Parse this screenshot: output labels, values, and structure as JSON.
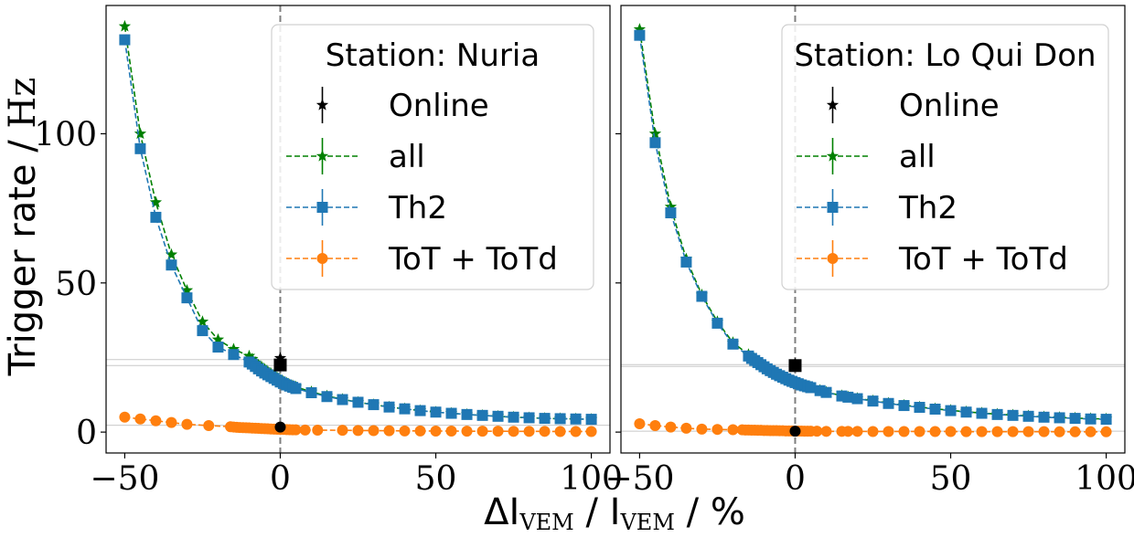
{
  "chart_data": [
    {
      "type": "line",
      "legend_title": "Station: Nuria",
      "legend_position": "top-right",
      "xlim": [
        -56,
        106
      ],
      "ylim": [
        -7,
        143
      ],
      "xticks": [
        -50,
        0,
        50,
        100
      ],
      "yticks": [
        0,
        50,
        100
      ],
      "vline_x": 0,
      "hlines": [
        22.3,
        24.3,
        2.3
      ],
      "online": {
        "name": "Online",
        "x": 0,
        "all": 24.8,
        "th2": 22.5,
        "tot": 1.7
      },
      "series": [
        {
          "name": "all",
          "color": "#008000",
          "marker": "star",
          "x": [
            -50,
            -45,
            -40,
            -35,
            -30,
            -25,
            -20,
            -15,
            -10,
            -9,
            -8,
            -7,
            -6,
            -5,
            -4,
            -3,
            -2,
            -1,
            0,
            1,
            2,
            3,
            4,
            5,
            10,
            15,
            20,
            25,
            30,
            35,
            40,
            45,
            50,
            55,
            60,
            65,
            70,
            75,
            80,
            85,
            90,
            95,
            100
          ],
          "y": [
            136,
            100,
            77,
            59.5,
            47.5,
            37,
            31,
            27.8,
            25.5,
            24.5,
            23.3,
            22.5,
            21.8,
            21,
            20.3,
            19.6,
            19,
            18.2,
            17.5,
            16.9,
            16.4,
            15.9,
            15.5,
            15.1,
            13.5,
            12.1,
            11,
            10,
            9.2,
            8.4,
            7.8,
            7.2,
            6.7,
            6.3,
            5.9,
            5.6,
            5.3,
            5,
            4.8,
            4.6,
            4.5,
            4.4,
            4.3
          ]
        },
        {
          "name": "Th2",
          "color": "#1f77b4",
          "marker": "square",
          "x": [
            -50,
            -45,
            -40,
            -35,
            -30,
            -25,
            -20,
            -15,
            -10,
            -9,
            -8,
            -7,
            -6,
            -5,
            -4,
            -3,
            -2,
            -1,
            0,
            1,
            2,
            3,
            4,
            5,
            10,
            15,
            20,
            25,
            30,
            35,
            40,
            45,
            50,
            55,
            60,
            65,
            70,
            75,
            80,
            85,
            90,
            95,
            100
          ],
          "y": [
            131.5,
            95,
            72,
            56,
            45,
            34,
            28.5,
            26,
            23.5,
            22.8,
            22,
            21.2,
            20.5,
            19.8,
            19.2,
            18.6,
            18,
            17.4,
            16.8,
            16.3,
            15.8,
            15.4,
            15,
            14.6,
            13.2,
            11.9,
            10.9,
            10,
            9.2,
            8.4,
            7.8,
            7.2,
            6.7,
            6.3,
            5.9,
            5.6,
            5.3,
            5,
            4.8,
            4.6,
            4.5,
            4.4,
            4.3
          ]
        },
        {
          "name": "ToT + ToTd",
          "color": "#ff7f0e",
          "marker": "circle",
          "x": [
            -50,
            -45,
            -40,
            -35,
            -30,
            -23,
            -16,
            -15,
            -14,
            -13,
            -12,
            -11,
            -10,
            -9,
            -8,
            -7,
            -6,
            -5,
            -4,
            -3,
            -2,
            -1,
            0,
            1,
            2,
            3,
            4,
            5,
            8,
            12,
            20,
            25,
            30,
            35,
            40,
            45,
            50,
            55,
            60,
            65,
            70,
            75,
            80,
            85,
            90,
            95,
            100
          ],
          "y": [
            5.0,
            4.4,
            3.8,
            3.2,
            2.6,
            2.2,
            1.8,
            1.7,
            1.6,
            1.55,
            1.5,
            1.45,
            1.4,
            1.35,
            1.3,
            1.25,
            1.2,
            1.15,
            1.1,
            1.05,
            1.0,
            0.95,
            0.9,
            0.9,
            0.85,
            0.8,
            0.75,
            0.75,
            0.7,
            0.65,
            0.6,
            0.55,
            0.5,
            0.45,
            0.4,
            0.4,
            0.35,
            0.35,
            0.3,
            0.3,
            0.3,
            0.25,
            0.25,
            0.25,
            0.2,
            0.2,
            0.2
          ]
        }
      ]
    },
    {
      "type": "line",
      "legend_title": "Station: Lo Qui Don",
      "legend_position": "top-right",
      "xlim": [
        -56,
        106
      ],
      "ylim": [
        -7,
        143
      ],
      "xticks": [
        -50,
        0,
        50,
        100
      ],
      "yticks": [
        0,
        50,
        100
      ],
      "vline_x": 0,
      "hlines": [
        22.0,
        22.6,
        0.3
      ],
      "online": {
        "name": "Online",
        "x": 0,
        "all": 22.8,
        "th2": 22.3,
        "tot": 0.3
      },
      "series": [
        {
          "name": "all",
          "color": "#008000",
          "marker": "star",
          "x": [
            -50,
            -45,
            -40,
            -35,
            -30,
            -25,
            -20,
            -15,
            -14,
            -13,
            -12,
            -11,
            -10,
            -9,
            -8,
            -7,
            -6,
            -5,
            -4,
            -3,
            -2,
            -1,
            0,
            1,
            2,
            3,
            4,
            5,
            8,
            10,
            15,
            17,
            20,
            25,
            30,
            35,
            40,
            45,
            50,
            55,
            60,
            65,
            70,
            75,
            80,
            85,
            90,
            95,
            100
          ],
          "y": [
            135,
            100,
            75.5,
            58,
            46,
            37,
            30,
            26,
            25,
            24.2,
            23.5,
            22.8,
            22,
            21.3,
            20.7,
            20.1,
            19.5,
            19,
            18.5,
            18,
            17.5,
            17.1,
            16.7,
            16.3,
            15.9,
            15.6,
            15.3,
            15,
            14,
            13.4,
            12.2,
            11.8,
            11.3,
            10.5,
            9.7,
            9,
            8.4,
            7.8,
            7.3,
            6.8,
            6.4,
            6,
            5.7,
            5.4,
            5.1,
            4.9,
            4.7,
            4.5,
            4.4
          ]
        },
        {
          "name": "Th2",
          "color": "#1f77b4",
          "marker": "square",
          "x": [
            -50,
            -45,
            -40,
            -35,
            -30,
            -25,
            -20,
            -15,
            -14,
            -13,
            -12,
            -11,
            -10,
            -9,
            -8,
            -7,
            -6,
            -5,
            -4,
            -3,
            -2,
            -1,
            0,
            1,
            2,
            3,
            4,
            5,
            8,
            10,
            15,
            17,
            20,
            25,
            30,
            35,
            40,
            45,
            50,
            55,
            60,
            65,
            70,
            75,
            80,
            85,
            90,
            95,
            100
          ],
          "y": [
            133,
            97,
            73.5,
            57,
            45.5,
            36.5,
            29.5,
            25.5,
            24.7,
            24,
            23.3,
            22.6,
            21.9,
            21.2,
            20.6,
            20,
            19.4,
            18.9,
            18.4,
            17.9,
            17.4,
            17,
            16.6,
            16.2,
            15.8,
            15.5,
            15.2,
            14.9,
            13.9,
            13.3,
            12.1,
            11.7,
            11.2,
            10.4,
            9.6,
            8.9,
            8.3,
            7.7,
            7.2,
            6.7,
            6.3,
            5.9,
            5.6,
            5.3,
            5,
            4.8,
            4.6,
            4.4,
            4.3
          ]
        },
        {
          "name": "ToT + ToTd",
          "color": "#ff7f0e",
          "marker": "circle",
          "x": [
            -50,
            -45,
            -40,
            -35,
            -30,
            -25,
            -20,
            -17,
            -16,
            -15,
            -14,
            -13,
            -12,
            -11,
            -10,
            -9,
            -8,
            -7,
            -6,
            -5,
            -4,
            -3,
            -2,
            -1,
            0,
            1,
            2,
            3,
            4,
            5,
            7,
            10,
            15,
            17,
            20,
            25,
            30,
            35,
            40,
            45,
            50,
            55,
            60,
            65,
            70,
            75,
            80,
            85,
            90,
            95,
            100
          ],
          "y": [
            2.8,
            2.2,
            1.7,
            1.3,
            1.0,
            0.9,
            0.8,
            0.75,
            0.7,
            0.7,
            0.65,
            0.65,
            0.6,
            0.6,
            0.55,
            0.55,
            0.5,
            0.5,
            0.5,
            0.45,
            0.45,
            0.4,
            0.4,
            0.4,
            0.35,
            0.35,
            0.35,
            0.3,
            0.3,
            0.3,
            0.3,
            0.25,
            0.25,
            0.25,
            0.25,
            0.2,
            0.2,
            0.2,
            0.2,
            0.2,
            0.2,
            0.15,
            0.15,
            0.15,
            0.15,
            0.15,
            0.15,
            0.1,
            0.1,
            0.1,
            0.1
          ]
        }
      ]
    }
  ],
  "ylabel_text": "Trigger rate / ",
  "ylabel_unit": "Hz",
  "xlabel": {
    "delta": "ΔI",
    "sub1": "VEM",
    "slash": " / I",
    "sub2": "VEM",
    "tail": " / %"
  }
}
